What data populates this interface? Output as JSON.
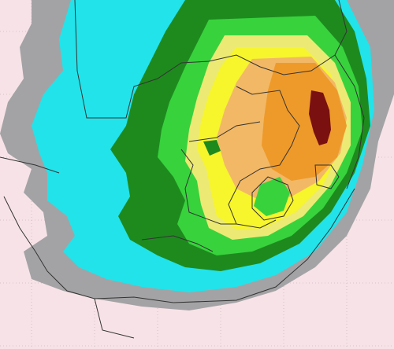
{
  "map": {
    "palette": {
      "background_land": "#f7e3e7",
      "gray": "#a3a3a5",
      "cyan": "#22e3ea",
      "dark_green": "#1e8a1e",
      "bright_green": "#38d23d",
      "light_yellow": "#ecea74",
      "yellow": "#f7f52c",
      "peach": "#f2b866",
      "orange": "#ee9a2a",
      "dark_red": "#7a1010",
      "border": "#333333",
      "grid": "#c9b8bf"
    },
    "layers": [
      "gray",
      "cyan",
      "dark_green",
      "bright_green",
      "light_yellow",
      "yellow",
      "peach",
      "orange",
      "dark_red"
    ]
  }
}
